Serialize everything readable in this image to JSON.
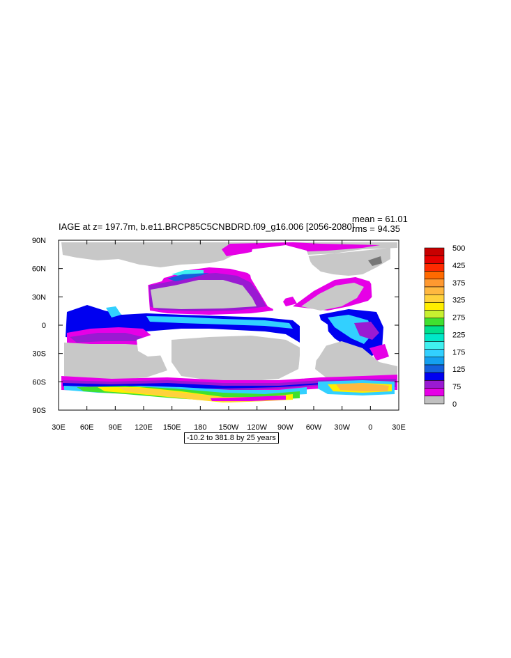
{
  "title": "IAGE at z= 197.7m, b.e11.BRCP85C5CNBDRD.f09_g16.006 [2056-2080]",
  "stats": {
    "mean": "mean = 61.01",
    "rms": "rms = 94.35"
  },
  "range_label": "-10.2 to 381.8 by 25 years",
  "lon_ticks": [
    "30E",
    "60E",
    "90E",
    "120E",
    "150E",
    "180",
    "150W",
    "120W",
    "90W",
    "60W",
    "30W",
    "0",
    "30E"
  ],
  "lat_ticks": [
    "90N",
    "60N",
    "30N",
    "0",
    "30S",
    "60S",
    "90S"
  ],
  "colorbar": {
    "labels": [
      "500",
      "425",
      "375",
      "325",
      "275",
      "225",
      "175",
      "125",
      "75",
      "0"
    ],
    "colors_top_to_bottom": [
      "#c80000",
      "#e60000",
      "#ff2a00",
      "#ff6a00",
      "#ff9930",
      "#ffb840",
      "#ffd23c",
      "#ffee00",
      "#c8f030",
      "#40e030",
      "#00e08c",
      "#00e8c8",
      "#40f0f0",
      "#32d0ff",
      "#14a0f0",
      "#1460dc",
      "#0000f0",
      "#9a1ad2",
      "#e600e6",
      "#c0c0c0"
    ]
  },
  "palette": {
    "land": "#ffffff",
    "low_age": "#c8c8c8",
    "magenta": "#e600e6",
    "purple": "#9a1ad2",
    "blue": "#0000f0",
    "mid_blue": "#1460dc",
    "cyan_blue": "#32d0ff",
    "cyan": "#40f0f0",
    "teal": "#00e08c",
    "green": "#40e030",
    "yellow": "#ffee00",
    "gold": "#ffd23c",
    "orange": "#ffb840"
  }
}
